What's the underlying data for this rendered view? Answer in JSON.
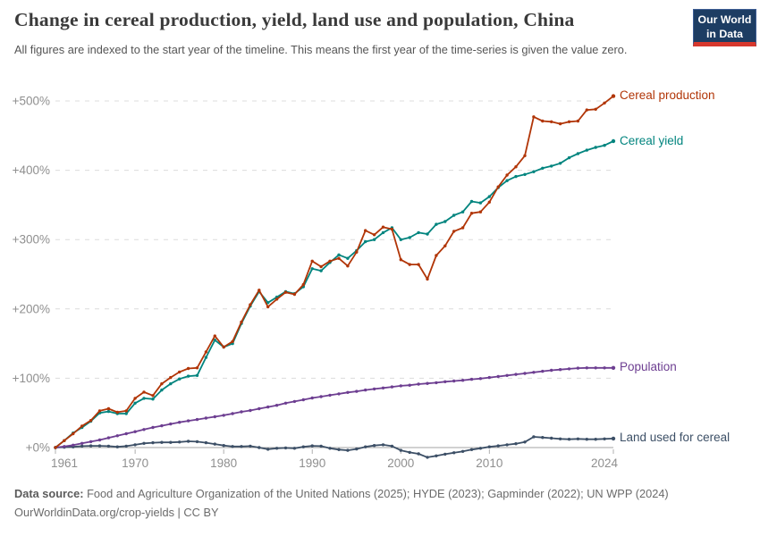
{
  "header": {
    "title": "Change in cereal production, yield, land use and population, China",
    "subtitle": "All figures are indexed to the start year of the timeline. This means the first year of the time-series is given the value zero.",
    "logo": {
      "line1": "Our World",
      "line2": "in Data",
      "bg_color": "#1d3d63",
      "bar_color": "#d7382d"
    }
  },
  "chart_data": {
    "type": "line",
    "title": "Change in cereal production, yield, land use and population, China",
    "xlabel": "",
    "ylabel": "",
    "ylim": [
      -20,
      530
    ],
    "grid": "horizontal-dashed",
    "legend_position": "right-end-labels",
    "x": [
      1961,
      1962,
      1963,
      1964,
      1965,
      1966,
      1967,
      1968,
      1969,
      1970,
      1971,
      1972,
      1973,
      1974,
      1975,
      1976,
      1977,
      1978,
      1979,
      1980,
      1981,
      1982,
      1983,
      1984,
      1985,
      1986,
      1987,
      1988,
      1989,
      1990,
      1991,
      1992,
      1993,
      1994,
      1995,
      1996,
      1997,
      1998,
      1999,
      2000,
      2001,
      2002,
      2003,
      2004,
      2005,
      2006,
      2007,
      2008,
      2009,
      2010,
      2011,
      2012,
      2013,
      2014,
      2015,
      2016,
      2017,
      2018,
      2019,
      2020,
      2021,
      2022,
      2023,
      2024
    ],
    "series": [
      {
        "name": "Cereal production",
        "color": "#B13507",
        "unit": "%",
        "values": [
          0,
          10,
          20,
          31,
          39,
          53,
          56,
          51,
          53,
          71,
          80,
          75,
          92,
          101,
          109,
          114,
          115,
          138,
          161,
          145,
          153,
          181,
          206,
          227,
          203,
          214,
          224,
          221,
          235,
          269,
          261,
          269,
          273,
          262,
          282,
          313,
          307,
          318,
          315,
          271,
          264,
          264,
          243,
          277,
          291,
          312,
          317,
          338,
          340,
          354,
          376,
          393,
          405,
          421,
          477,
          471,
          470,
          467,
          470,
          471,
          487,
          488,
          497,
          507
        ]
      },
      {
        "name": "Cereal yield",
        "color": "#00847E",
        "unit": "%",
        "values": [
          0,
          10,
          21,
          29,
          38,
          50,
          52,
          49,
          49,
          64,
          71,
          70,
          83,
          92,
          99,
          103,
          104,
          130,
          155,
          145,
          150,
          179,
          204,
          225,
          209,
          217,
          225,
          222,
          232,
          258,
          255,
          267,
          278,
          273,
          284,
          297,
          300,
          310,
          317,
          300,
          303,
          310,
          308,
          322,
          326,
          335,
          340,
          355,
          353,
          362,
          375,
          385,
          391,
          394,
          398,
          403,
          406,
          410,
          418,
          424,
          429,
          433,
          436,
          442
        ]
      },
      {
        "name": "Population",
        "color": "#6D3E91",
        "unit": "%",
        "values": [
          0,
          1.5,
          3.5,
          6,
          8.5,
          11,
          14,
          17,
          20,
          23,
          26,
          29,
          31.5,
          34,
          36.5,
          38.5,
          40.5,
          42.5,
          44.5,
          46.5,
          49,
          51.5,
          53.5,
          56,
          58.5,
          61,
          64,
          66.5,
          69,
          71.5,
          73.5,
          75.5,
          77.5,
          79.5,
          81,
          83,
          84.5,
          86,
          87.5,
          89,
          90,
          91.5,
          92.5,
          93.5,
          95,
          96,
          97,
          98.5,
          99.5,
          101,
          102.5,
          104,
          105.5,
          107,
          108.5,
          110,
          111.5,
          112.5,
          113.5,
          114.5,
          115,
          115,
          115,
          115
        ]
      },
      {
        "name": "Land used for cereal",
        "color": "#3C4F66",
        "unit": "%",
        "values": [
          0,
          0.5,
          1,
          2,
          2.5,
          2.5,
          2,
          1,
          2,
          4,
          6,
          7,
          7.5,
          7.5,
          8,
          9,
          8.5,
          7,
          5,
          3,
          1.5,
          1.5,
          2,
          0,
          -2.5,
          -1,
          -0.5,
          -1,
          1,
          2.5,
          2,
          -1,
          -3,
          -4,
          -2,
          1,
          3,
          4,
          2,
          -4,
          -7,
          -9,
          -14,
          -12,
          -9.5,
          -7.5,
          -5.5,
          -3,
          -1,
          1,
          2.5,
          4,
          5.5,
          8,
          15.5,
          14.5,
          13.5,
          12.5,
          12,
          12.5,
          12,
          12,
          12.5,
          13
        ]
      }
    ],
    "yticks": [
      {
        "value": 0,
        "label": "+0%"
      },
      {
        "value": 100,
        "label": "+100%"
      },
      {
        "value": 200,
        "label": "+200%"
      },
      {
        "value": 300,
        "label": "+300%"
      },
      {
        "value": 400,
        "label": "+400%"
      },
      {
        "value": 500,
        "label": "+500%"
      }
    ],
    "xticks": [
      {
        "value": 1961,
        "label": "1961"
      },
      {
        "value": 1970,
        "label": "1970"
      },
      {
        "value": 1980,
        "label": "1980"
      },
      {
        "value": 1990,
        "label": "1990"
      },
      {
        "value": 2000,
        "label": "2000"
      },
      {
        "value": 2010,
        "label": "2010"
      },
      {
        "value": 2024,
        "label": "2024"
      }
    ],
    "styles": {
      "gridline_color": "#dcdcdc",
      "zero_line_color": "#a3a3a3",
      "axis_text_color": "#8f8f8f",
      "tick_mark_color": "#b0b0b0"
    }
  },
  "footer": {
    "datasource_label": "Data source:",
    "datasource_text": "Food and Agriculture Organization of the United Nations (2025); HYDE (2023); Gapminder (2022); UN WPP (2024)",
    "link_line": "OurWorldinData.org/crop-yields | CC BY"
  }
}
